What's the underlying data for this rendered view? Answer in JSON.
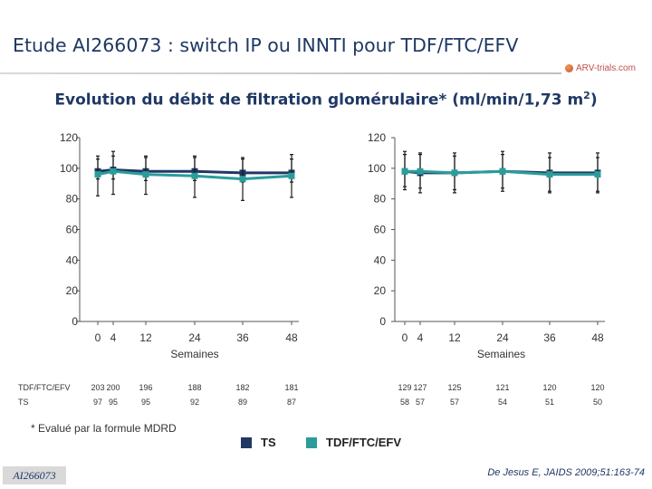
{
  "slide": {
    "title": "Etude AI266073 : switch IP ou INNTI pour TDF/FTC/EFV",
    "logo_text": "ARV-trials.com",
    "subtitle_main": "Evolution du débit de filtration glomérulaire* (ml/min/1,73 m",
    "subtitle_sup": "2",
    "subtitle_end": ")",
    "footnote": "* Evalué par la formule MDRD",
    "citation": "De Jesus E, JAIDS 2009;51:163-74",
    "badge": "AI266073"
  },
  "legend": [
    {
      "label": "TS",
      "color": "#1f3864"
    },
    {
      "label": "TDF/FTC/EFV",
      "color": "#2a9d9a"
    }
  ],
  "colors": {
    "ts": "#1f3864",
    "tdf": "#2a9d9a",
    "axis": "#555555"
  },
  "chart_data": [
    {
      "type": "line",
      "x": [
        0,
        4,
        12,
        24,
        36,
        48
      ],
      "x_tick_labels": [
        "0",
        "4",
        "12",
        "24",
        "36",
        "48"
      ],
      "xlabel": "Semaines",
      "ylabel": "",
      "ylim": [
        0,
        120
      ],
      "y_ticks": [
        0,
        20,
        40,
        60,
        80,
        100,
        120
      ],
      "series": [
        {
          "name": "TS",
          "values": [
            98,
            99,
            98,
            98,
            97,
            97
          ],
          "err_lo": [
            5,
            6,
            6,
            6,
            6,
            6
          ],
          "err_hi": [
            8,
            9,
            9,
            9,
            9,
            9
          ]
        },
        {
          "name": "TDF/FTC/EFV",
          "values": [
            96,
            98,
            96,
            95,
            93,
            95
          ],
          "err_lo": [
            14,
            15,
            13,
            14,
            14,
            14
          ],
          "err_hi": [
            12,
            13,
            12,
            13,
            14,
            14
          ]
        }
      ],
      "table": {
        "rows": [
          {
            "label": "TDF/FTC/EFV",
            "values": [
              "203",
              "200",
              "196",
              "188",
              "182",
              "181"
            ]
          },
          {
            "label": "TS",
            "values": [
              "97",
              "95",
              "95",
              "92",
              "89",
              "87"
            ]
          }
        ]
      }
    },
    {
      "type": "line",
      "x": [
        0,
        4,
        12,
        24,
        36,
        48
      ],
      "x_tick_labels": [
        "0",
        "4",
        "12",
        "24",
        "36",
        "48"
      ],
      "xlabel": "Semaines",
      "ylabel": "",
      "ylim": [
        0,
        120
      ],
      "y_ticks": [
        0,
        20,
        40,
        60,
        80,
        100,
        120
      ],
      "series": [
        {
          "name": "TS",
          "values": [
            98,
            97,
            97,
            98,
            97,
            97
          ],
          "err_lo": [
            12,
            13,
            13,
            13,
            13,
            13
          ],
          "err_hi": [
            13,
            13,
            13,
            13,
            13,
            13
          ]
        },
        {
          "name": "TDF/FTC/EFV",
          "values": [
            98,
            98,
            97,
            98,
            96,
            96
          ],
          "err_lo": [
            10,
            11,
            11,
            11,
            11,
            11
          ],
          "err_hi": [
            11,
            11,
            11,
            11,
            11,
            11
          ]
        }
      ],
      "table": {
        "rows": [
          {
            "label": "",
            "values": [
              "129",
              "127",
              "125",
              "121",
              "120",
              "120"
            ]
          },
          {
            "label": "",
            "values": [
              "58",
              "57",
              "57",
              "54",
              "51",
              "50"
            ]
          }
        ]
      }
    }
  ]
}
